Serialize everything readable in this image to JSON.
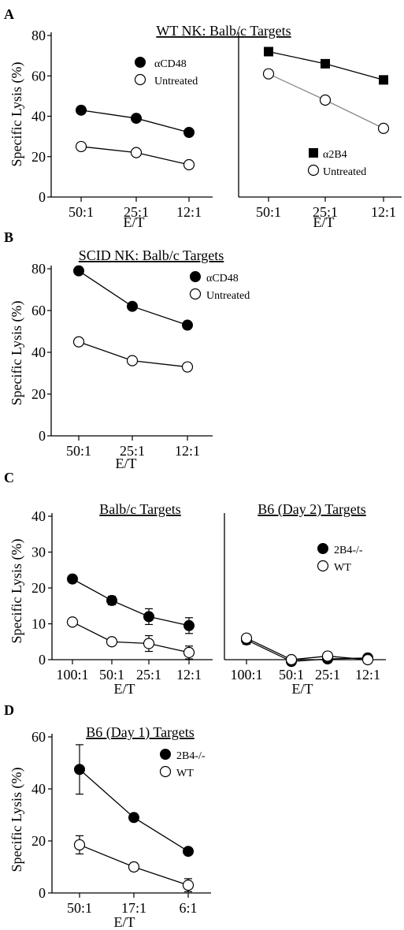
{
  "chart_data": [
    {
      "panel": "A",
      "type": "line",
      "title": "WT NK: Balb/c Targets",
      "xlabel": "E/T",
      "ylabel": "Specific Lysis (%)",
      "ylim": [
        0,
        80
      ],
      "yticks": [
        "0",
        "20",
        "40",
        "60",
        "80"
      ],
      "categories": [
        "50:1",
        "25:1",
        "12:1"
      ],
      "series": [
        {
          "name": "αCD48",
          "marker": "circle-filled",
          "values": [
            43,
            39,
            32
          ]
        },
        {
          "name": "Untreated",
          "marker": "circle-open",
          "values": [
            25,
            22,
            16
          ]
        }
      ]
    },
    {
      "panel": "A-right",
      "type": "line",
      "title": "",
      "xlabel": "E/T",
      "ylabel": "",
      "ylim": [
        0,
        80
      ],
      "yticks": [],
      "categories": [
        "50:1",
        "25:1",
        "12:1"
      ],
      "series": [
        {
          "name": "α2B4",
          "marker": "square-filled",
          "values": [
            72,
            66,
            58
          ]
        },
        {
          "name": "Untreated",
          "marker": "circle-open",
          "values": [
            61,
            48,
            34
          ]
        }
      ]
    },
    {
      "panel": "B",
      "type": "line",
      "title": "SCID NK: Balb/c Targets",
      "xlabel": "E/T",
      "ylabel": "Specific Lysis (%)",
      "ylim": [
        0,
        80
      ],
      "yticks": [
        "0",
        "20",
        "40",
        "60",
        "80"
      ],
      "categories": [
        "50:1",
        "25:1",
        "12:1"
      ],
      "series": [
        {
          "name": "αCD48",
          "marker": "circle-filled",
          "values": [
            79,
            62,
            53
          ]
        },
        {
          "name": "Untreated",
          "marker": "circle-open",
          "values": [
            45,
            36,
            33
          ]
        }
      ]
    },
    {
      "panel": "C",
      "type": "line",
      "title": "Balb/c Targets",
      "xlabel": "E/T",
      "ylabel": "Specific Lysis (%)",
      "ylim": [
        0,
        40
      ],
      "yticks": [
        "0",
        "10",
        "20",
        "30",
        "40"
      ],
      "categories": [
        "100:1",
        "50:1",
        "25:1",
        "12:1"
      ],
      "series": [
        {
          "name": "2B4-/-",
          "marker": "circle-filled",
          "values": [
            22.5,
            16.5,
            12,
            9.5
          ],
          "errors": [
            0.8,
            1.2,
            2.2,
            2.2
          ]
        },
        {
          "name": "WT",
          "marker": "circle-open",
          "values": [
            10.5,
            5,
            4.5,
            2
          ],
          "errors": [
            0.5,
            0.8,
            2.2,
            1.8
          ]
        }
      ]
    },
    {
      "panel": "C-right",
      "type": "line",
      "title": "B6 (Day 2) Targets",
      "xlabel": "E/T",
      "ylabel": "",
      "ylim": [
        0,
        40
      ],
      "yticks": [],
      "categories": [
        "100:1",
        "50:1",
        "25:1",
        "12:1"
      ],
      "series": [
        {
          "name": "2B4-/-",
          "marker": "circle-filled",
          "values": [
            5.5,
            -0.5,
            0.2,
            0.5
          ],
          "errors": [
            1.2,
            0.6,
            0.5,
            0.5
          ]
        },
        {
          "name": "WT",
          "marker": "circle-open",
          "values": [
            6,
            0,
            1,
            0
          ],
          "errors": [
            1,
            0.5,
            0.5,
            0.3
          ]
        }
      ]
    },
    {
      "panel": "D",
      "type": "line",
      "title": "B6 (Day 1) Targets",
      "xlabel": "E/T",
      "ylabel": "Specific Lysis (%)",
      "ylim": [
        0,
        60
      ],
      "yticks": [
        "0",
        "20",
        "40",
        "60"
      ],
      "categories": [
        "50:1",
        "17:1",
        "6:1"
      ],
      "series": [
        {
          "name": "2B4-/-",
          "marker": "circle-filled",
          "values": [
            47.5,
            29,
            16
          ],
          "errors": [
            9.5,
            1,
            1
          ]
        },
        {
          "name": "WT",
          "marker": "circle-open",
          "values": [
            18.5,
            10,
            3
          ],
          "errors": [
            3.5,
            1.5,
            2.5
          ]
        }
      ]
    }
  ]
}
